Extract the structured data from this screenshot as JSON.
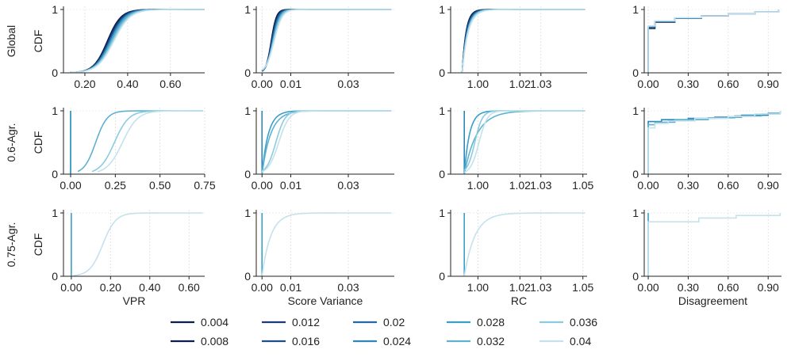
{
  "palette": {
    "0.004": "#0b1f4b",
    "0.008": "#0d1b4e",
    "0.012": "#1a3a7a",
    "0.016": "#1f4f8a",
    "0.02": "#2369a6",
    "0.024": "#2f86b8",
    "0.028": "#3a9fc8",
    "0.032": "#5fb2cf",
    "0.036": "#8ccbdf",
    "0.04": "#c3e2ec"
  },
  "row_labels": [
    "Global",
    "0.6-Agr.",
    "0.75-Agr."
  ],
  "ylabel": "CDF",
  "y_ticks": [
    "0",
    "1"
  ],
  "col_xlabels": [
    "VPR",
    "Score Variance",
    "RC",
    "Disagreement"
  ],
  "legend": [
    {
      "name": "0.004"
    },
    {
      "name": "0.008"
    },
    {
      "name": "0.012"
    },
    {
      "name": "0.016"
    },
    {
      "name": "0.02"
    },
    {
      "name": "0.024"
    },
    {
      "name": "0.028"
    },
    {
      "name": "0.032"
    },
    {
      "name": "0.036"
    },
    {
      "name": "0.04"
    }
  ],
  "chart_data": [
    {
      "type": "line",
      "row": 0,
      "col": 0,
      "xlabel": "",
      "ylabel": "CDF",
      "xlim": [
        0.1,
        0.76
      ],
      "ylim": [
        0,
        1
      ],
      "x_ticks": [
        {
          "v": 0.2,
          "t": "0.20"
        },
        {
          "v": 0.4,
          "t": "0.40"
        },
        {
          "v": 0.6,
          "t": "0.60"
        }
      ],
      "curves": [
        {
          "name": "0.004",
          "kind": "logistic",
          "m": 0.31,
          "s": 0.032,
          "x0": 0.13,
          "x1": 0.76
        },
        {
          "name": "0.008",
          "kind": "logistic",
          "m": 0.305,
          "s": 0.032,
          "x0": 0.13,
          "x1": 0.76
        },
        {
          "name": "0.012",
          "kind": "logistic",
          "m": 0.31,
          "s": 0.033,
          "x0": 0.13,
          "x1": 0.76
        },
        {
          "name": "0.016",
          "kind": "logistic",
          "m": 0.315,
          "s": 0.034,
          "x0": 0.13,
          "x1": 0.76
        },
        {
          "name": "0.02",
          "kind": "logistic",
          "m": 0.315,
          "s": 0.034,
          "x0": 0.13,
          "x1": 0.76
        },
        {
          "name": "0.024",
          "kind": "logistic",
          "m": 0.32,
          "s": 0.035,
          "x0": 0.13,
          "x1": 0.76
        },
        {
          "name": "0.028",
          "kind": "logistic",
          "m": 0.32,
          "s": 0.035,
          "x0": 0.13,
          "x1": 0.76
        },
        {
          "name": "0.032",
          "kind": "logistic",
          "m": 0.325,
          "s": 0.036,
          "x0": 0.13,
          "x1": 0.76
        },
        {
          "name": "0.036",
          "kind": "logistic",
          "m": 0.33,
          "s": 0.037,
          "x0": 0.13,
          "x1": 0.76
        },
        {
          "name": "0.04",
          "kind": "logistic",
          "m": 0.335,
          "s": 0.038,
          "x0": 0.13,
          "x1": 0.76
        }
      ]
    },
    {
      "type": "line",
      "row": 0,
      "col": 1,
      "xlabel": "",
      "ylabel": "",
      "xlim": [
        -0.002,
        0.046
      ],
      "ylim": [
        0,
        1
      ],
      "x_ticks": [
        {
          "v": 0.0,
          "t": "0.00"
        },
        {
          "v": 0.01,
          "t": "0.01"
        },
        {
          "v": 0.03,
          "t": "0.03"
        }
      ],
      "curves": [
        {
          "name": "0.004",
          "kind": "logistic",
          "m": 0.0032,
          "s": 0.0009,
          "x0": 0.0,
          "x1": 0.045
        },
        {
          "name": "0.008",
          "kind": "logistic",
          "m": 0.0033,
          "s": 0.0009,
          "x0": 0.0,
          "x1": 0.045
        },
        {
          "name": "0.012",
          "kind": "logistic",
          "m": 0.0034,
          "s": 0.001,
          "x0": 0.0,
          "x1": 0.045
        },
        {
          "name": "0.016",
          "kind": "logistic",
          "m": 0.0035,
          "s": 0.001,
          "x0": 0.0,
          "x1": 0.045
        },
        {
          "name": "0.02",
          "kind": "logistic",
          "m": 0.0036,
          "s": 0.0011,
          "x0": 0.0,
          "x1": 0.045
        },
        {
          "name": "0.024",
          "kind": "logistic",
          "m": 0.0037,
          "s": 0.0011,
          "x0": 0.0,
          "x1": 0.045
        },
        {
          "name": "0.028",
          "kind": "logistic",
          "m": 0.0038,
          "s": 0.0012,
          "x0": 0.0,
          "x1": 0.045
        },
        {
          "name": "0.032",
          "kind": "logistic",
          "m": 0.0039,
          "s": 0.0012,
          "x0": 0.0,
          "x1": 0.045
        },
        {
          "name": "0.036",
          "kind": "logistic",
          "m": 0.004,
          "s": 0.0013,
          "x0": 0.0,
          "x1": 0.045
        },
        {
          "name": "0.04",
          "kind": "logistic",
          "m": 0.0042,
          "s": 0.0014,
          "x0": 0.0,
          "x1": 0.045
        }
      ]
    },
    {
      "type": "line",
      "row": 0,
      "col": 2,
      "xlabel": "",
      "ylabel": "",
      "xlim": [
        0.987,
        1.052
      ],
      "ylim": [
        0,
        1
      ],
      "x_ticks": [
        {
          "v": 1.0,
          "t": "1.00"
        },
        {
          "v": 1.02,
          "t": "1.02"
        },
        {
          "v": 1.03,
          "t": "1.03"
        }
      ],
      "curves": [
        {
          "name": "0.004",
          "kind": "exp",
          "m": 0.9925,
          "s": 0.0018,
          "x0": 0.9925,
          "x1": 1.051
        },
        {
          "name": "0.008",
          "kind": "exp",
          "m": 0.9925,
          "s": 0.0019,
          "x0": 0.9925,
          "x1": 1.051
        },
        {
          "name": "0.012",
          "kind": "exp",
          "m": 0.9925,
          "s": 0.002,
          "x0": 0.9925,
          "x1": 1.051
        },
        {
          "name": "0.016",
          "kind": "exp",
          "m": 0.9925,
          "s": 0.0021,
          "x0": 0.9925,
          "x1": 1.051
        },
        {
          "name": "0.02",
          "kind": "exp",
          "m": 0.9925,
          "s": 0.0022,
          "x0": 0.9925,
          "x1": 1.051
        },
        {
          "name": "0.024",
          "kind": "exp",
          "m": 0.9925,
          "s": 0.0023,
          "x0": 0.9925,
          "x1": 1.051
        },
        {
          "name": "0.028",
          "kind": "exp",
          "m": 0.9925,
          "s": 0.0024,
          "x0": 0.9925,
          "x1": 1.051
        },
        {
          "name": "0.032",
          "kind": "exp",
          "m": 0.9925,
          "s": 0.0025,
          "x0": 0.9925,
          "x1": 1.051
        },
        {
          "name": "0.036",
          "kind": "exp",
          "m": 0.9925,
          "s": 0.0026,
          "x0": 0.9925,
          "x1": 1.051
        },
        {
          "name": "0.04",
          "kind": "exp",
          "m": 0.9925,
          "s": 0.0028,
          "x0": 0.9925,
          "x1": 1.051
        }
      ]
    },
    {
      "type": "line",
      "row": 0,
      "col": 3,
      "xlabel": "",
      "ylabel": "",
      "xlim": [
        -0.03,
        1.0
      ],
      "ylim": [
        0,
        1
      ],
      "x_ticks": [
        {
          "v": 0.0,
          "t": "0.00"
        },
        {
          "v": 0.3,
          "t": "0.30"
        },
        {
          "v": 0.6,
          "t": "0.60"
        },
        {
          "v": 0.9,
          "t": "0.90"
        }
      ],
      "curves": [
        {
          "name": "0.004",
          "kind": "step",
          "points": [
            [
              0,
              0
            ],
            [
              0,
              0.7
            ],
            [
              0.05,
              0.8
            ],
            [
              0.2,
              0.86
            ],
            [
              0.4,
              0.9
            ],
            [
              0.6,
              0.93
            ],
            [
              0.8,
              0.96
            ],
            [
              0.98,
              1.0
            ]
          ]
        },
        {
          "name": "0.02",
          "kind": "step",
          "points": [
            [
              0,
              0
            ],
            [
              0,
              0.72
            ],
            [
              0.05,
              0.81
            ],
            [
              0.2,
              0.86
            ],
            [
              0.4,
              0.9
            ],
            [
              0.6,
              0.93
            ],
            [
              0.8,
              0.96
            ],
            [
              0.98,
              1.0
            ]
          ]
        },
        {
          "name": "0.04",
          "kind": "step",
          "points": [
            [
              0,
              0
            ],
            [
              0,
              0.74
            ],
            [
              0.05,
              0.82
            ],
            [
              0.2,
              0.87
            ],
            [
              0.4,
              0.9
            ],
            [
              0.6,
              0.93
            ],
            [
              0.8,
              0.96
            ],
            [
              0.98,
              1.0
            ]
          ]
        }
      ]
    },
    {
      "type": "line",
      "row": 1,
      "col": 0,
      "xlabel": "",
      "ylabel": "CDF",
      "xlim": [
        -0.04,
        0.75
      ],
      "ylim": [
        0,
        1
      ],
      "x_ticks": [
        {
          "v": 0.0,
          "t": "0.00"
        },
        {
          "v": 0.25,
          "t": "0.25"
        },
        {
          "v": 0.5,
          "t": "0.50"
        },
        {
          "v": 0.75,
          "t": "0.75"
        }
      ],
      "curves": [
        {
          "name": "0.024",
          "kind": "vertical",
          "m": 0.0
        },
        {
          "name": "0.028",
          "kind": "vertical",
          "m": 0.0
        },
        {
          "name": "0.032",
          "kind": "logistic",
          "m": 0.14,
          "s": 0.032,
          "x0": 0.04,
          "x1": 0.74
        },
        {
          "name": "0.036",
          "kind": "logistic",
          "m": 0.245,
          "s": 0.04,
          "x0": 0.12,
          "x1": 0.74
        },
        {
          "name": "0.04",
          "kind": "logistic",
          "m": 0.29,
          "s": 0.043,
          "x0": 0.15,
          "x1": 0.74
        }
      ]
    },
    {
      "type": "line",
      "row": 1,
      "col": 1,
      "xlabel": "",
      "ylabel": "",
      "xlim": [
        -0.002,
        0.046
      ],
      "ylim": [
        0,
        1
      ],
      "x_ticks": [
        {
          "v": 0.0,
          "t": "0.00"
        },
        {
          "v": 0.01,
          "t": "0.01"
        },
        {
          "v": 0.03,
          "t": "0.03"
        }
      ],
      "curves": [
        {
          "name": "0.024",
          "kind": "vertical",
          "m": 0.0
        },
        {
          "name": "0.028",
          "kind": "exp",
          "m": 0.0,
          "s": 0.0022,
          "x0": 0.0,
          "x1": 0.045
        },
        {
          "name": "0.032",
          "kind": "exp",
          "m": 0.0,
          "s": 0.003,
          "x0": 0.0,
          "x1": 0.045
        },
        {
          "name": "0.036",
          "kind": "logistic",
          "m": 0.0048,
          "s": 0.0016,
          "x0": 0.0,
          "x1": 0.045
        },
        {
          "name": "0.04",
          "kind": "logistic",
          "m": 0.0058,
          "s": 0.0018,
          "x0": 0.0,
          "x1": 0.045
        }
      ]
    },
    {
      "type": "line",
      "row": 1,
      "col": 2,
      "xlabel": "",
      "ylabel": "",
      "xlim": [
        0.987,
        1.052
      ],
      "ylim": [
        0,
        1
      ],
      "x_ticks": [
        {
          "v": 1.0,
          "t": "1.00"
        },
        {
          "v": 1.02,
          "t": "1.02"
        },
        {
          "v": 1.03,
          "t": "1.03"
        },
        {
          "v": 1.05,
          "t": "1.05"
        }
      ],
      "curves": [
        {
          "name": "0.024",
          "kind": "vertical",
          "m": 0.9935
        },
        {
          "name": "0.028",
          "kind": "exp",
          "m": 0.9935,
          "s": 0.0025,
          "x0": 0.9935,
          "x1": 1.051
        },
        {
          "name": "0.032",
          "kind": "exp",
          "m": 0.9935,
          "s": 0.006,
          "x0": 0.9935,
          "x1": 1.051
        },
        {
          "name": "0.036",
          "kind": "logistic",
          "m": 0.9985,
          "s": 0.0018,
          "x0": 0.9935,
          "x1": 1.051
        },
        {
          "name": "0.04",
          "kind": "logistic",
          "m": 1.0005,
          "s": 0.002,
          "x0": 0.9935,
          "x1": 1.051
        }
      ]
    },
    {
      "type": "line",
      "row": 1,
      "col": 3,
      "xlabel": "",
      "ylabel": "",
      "xlim": [
        -0.03,
        1.0
      ],
      "ylim": [
        0,
        1
      ],
      "x_ticks": [
        {
          "v": 0.0,
          "t": "0.00"
        },
        {
          "v": 0.3,
          "t": "0.30"
        },
        {
          "v": 0.6,
          "t": "0.60"
        },
        {
          "v": 0.9,
          "t": "0.90"
        }
      ],
      "curves": [
        {
          "name": "0.024",
          "kind": "step",
          "points": [
            [
              0,
              0
            ],
            [
              0,
              0.83
            ],
            [
              0.1,
              0.86
            ],
            [
              0.3,
              0.88
            ],
            [
              0.5,
              0.9
            ],
            [
              0.7,
              0.93
            ],
            [
              0.9,
              0.96
            ],
            [
              0.99,
              1.0
            ]
          ]
        },
        {
          "name": "0.032",
          "kind": "step",
          "points": [
            [
              0,
              0
            ],
            [
              0,
              0.78
            ],
            [
              0.05,
              0.82
            ],
            [
              0.2,
              0.86
            ],
            [
              0.45,
              0.89
            ],
            [
              0.65,
              0.92
            ],
            [
              0.85,
              0.95
            ],
            [
              0.99,
              1.0
            ]
          ]
        },
        {
          "name": "0.04",
          "kind": "step",
          "points": [
            [
              0,
              0
            ],
            [
              0,
              0.73
            ],
            [
              0.05,
              0.8
            ],
            [
              0.15,
              0.84
            ],
            [
              0.35,
              0.88
            ],
            [
              0.6,
              0.91
            ],
            [
              0.8,
              0.95
            ],
            [
              0.99,
              1.0
            ]
          ]
        }
      ]
    },
    {
      "type": "line",
      "row": 2,
      "col": 0,
      "xlabel": "VPR",
      "ylabel": "CDF",
      "xlim": [
        -0.04,
        0.68
      ],
      "ylim": [
        0,
        1
      ],
      "x_ticks": [
        {
          "v": 0.0,
          "t": "0.00"
        },
        {
          "v": 0.2,
          "t": "0.20"
        },
        {
          "v": 0.4,
          "t": "0.40"
        },
        {
          "v": 0.6,
          "t": "0.60"
        }
      ],
      "curves": [
        {
          "name": "0.028",
          "kind": "vertical",
          "m": 0.0
        },
        {
          "name": "0.04",
          "kind": "logistic",
          "m": 0.16,
          "s": 0.033,
          "x0": 0.01,
          "x1": 0.67
        }
      ]
    },
    {
      "type": "line",
      "row": 2,
      "col": 1,
      "xlabel": "Score Variance",
      "ylabel": "",
      "xlim": [
        -0.002,
        0.046
      ],
      "ylim": [
        0,
        1
      ],
      "x_ticks": [
        {
          "v": 0.0,
          "t": "0.00"
        },
        {
          "v": 0.01,
          "t": "0.01"
        },
        {
          "v": 0.03,
          "t": "0.03"
        }
      ],
      "curves": [
        {
          "name": "0.028",
          "kind": "vertical",
          "m": 0.0
        },
        {
          "name": "0.04",
          "kind": "exp",
          "m": 0.0,
          "s": 0.003,
          "x0": 0.0,
          "x1": 0.045
        }
      ]
    },
    {
      "type": "line",
      "row": 2,
      "col": 2,
      "xlabel": "RC",
      "ylabel": "",
      "xlim": [
        0.987,
        1.052
      ],
      "ylim": [
        0,
        1
      ],
      "x_ticks": [
        {
          "v": 1.0,
          "t": "1.00"
        },
        {
          "v": 1.02,
          "t": "1.02"
        },
        {
          "v": 1.03,
          "t": "1.03"
        },
        {
          "v": 1.05,
          "t": "1.05"
        }
      ],
      "curves": [
        {
          "name": "0.028",
          "kind": "vertical",
          "m": 0.9935
        },
        {
          "name": "0.04",
          "kind": "exp",
          "m": 0.9935,
          "s": 0.005,
          "x0": 0.9935,
          "x1": 1.051
        }
      ]
    },
    {
      "type": "line",
      "row": 2,
      "col": 3,
      "xlabel": "Disagreement",
      "ylabel": "",
      "xlim": [
        -0.03,
        1.0
      ],
      "ylim": [
        0,
        1
      ],
      "x_ticks": [
        {
          "v": 0.0,
          "t": "0.00"
        },
        {
          "v": 0.3,
          "t": "0.30"
        },
        {
          "v": 0.6,
          "t": "0.60"
        },
        {
          "v": 0.9,
          "t": "0.90"
        }
      ],
      "curves": [
        {
          "name": "0.028",
          "kind": "vertical",
          "m": 0.0
        },
        {
          "name": "0.04",
          "kind": "step",
          "points": [
            [
              0,
              0
            ],
            [
              0,
              0.86
            ],
            [
              0.38,
              0.86
            ],
            [
              0.38,
              0.92
            ],
            [
              0.66,
              0.92
            ],
            [
              0.66,
              0.96
            ],
            [
              0.9,
              0.96
            ],
            [
              0.99,
              1.0
            ]
          ]
        }
      ]
    }
  ]
}
